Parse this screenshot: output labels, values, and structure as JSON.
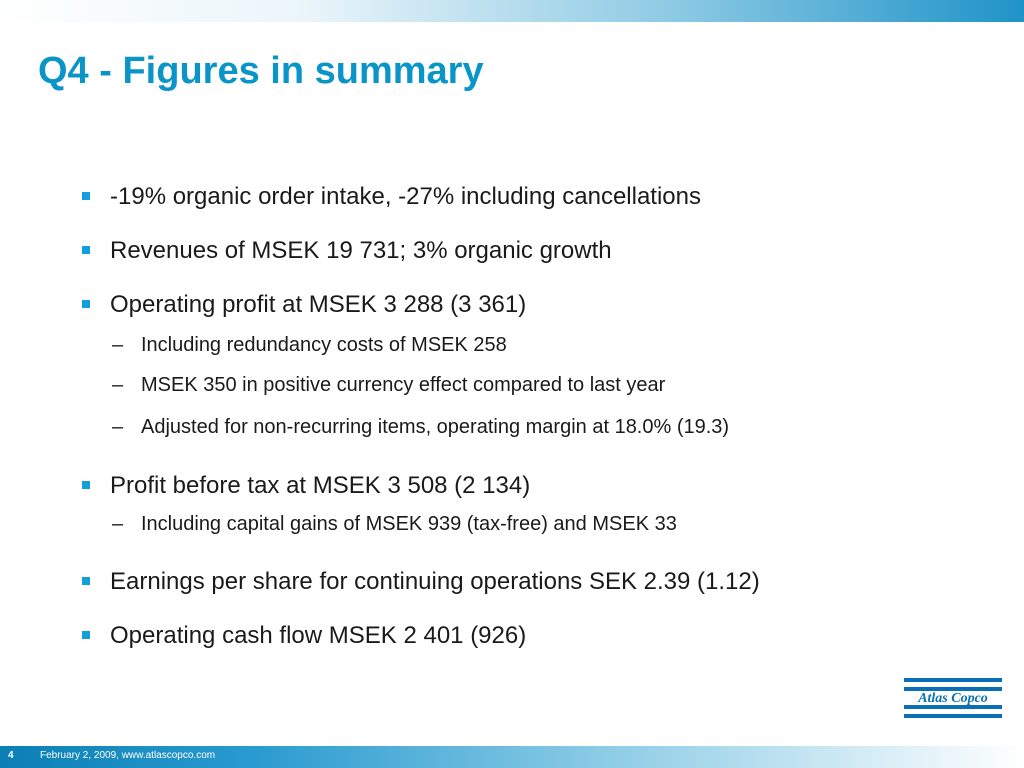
{
  "slide": {
    "title": "Q4 - Figures in summary",
    "bullets": [
      {
        "text": "-19% organic order intake, -27% including cancellations",
        "sub": []
      },
      {
        "text": "Revenues of MSEK 19 731; 3% organic growth",
        "sub": []
      },
      {
        "text": "Operating profit at MSEK 3 288 (3 361)",
        "sub": [
          "Including redundancy costs of MSEK 258",
          "MSEK 350 in positive currency effect compared to last year",
          "Adjusted for non-recurring items, operating margin at 18.0% (19.3)"
        ]
      },
      {
        "text": "Profit before tax at MSEK 3 508 (2 134)",
        "sub": [
          "Including capital gains of MSEK 939 (tax-free) and MSEK 33"
        ]
      },
      {
        "text": "Earnings per share for continuing operations SEK 2.39 (1.12)",
        "sub": []
      },
      {
        "text": "Operating cash flow MSEK 2 401 (926)",
        "sub": []
      }
    ],
    "sub_marker": "–"
  },
  "logo": {
    "text": "Atlas Copco",
    "color": "#0a6fb4"
  },
  "footer": {
    "page_number": "4",
    "text": "February 2, 2009, www.atlascopco.com"
  },
  "colors": {
    "title": "#0a95c9",
    "bullet_marker": "#13a0d8",
    "body_text": "#1a1a1a"
  }
}
